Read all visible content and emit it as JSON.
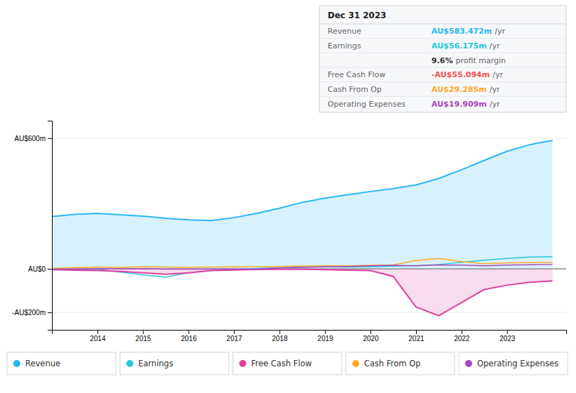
{
  "chart_data": {
    "type": "line",
    "x": [
      2013.0,
      2013.5,
      2014.0,
      2014.5,
      2015.0,
      2015.5,
      2016.0,
      2016.5,
      2017.0,
      2017.5,
      2018.0,
      2018.5,
      2019.0,
      2019.5,
      2020.0,
      2020.5,
      2021.0,
      2021.5,
      2022.0,
      2022.5,
      2023.0,
      2023.5,
      2024.0
    ],
    "series": [
      {
        "name": "Revenue",
        "type": "area",
        "color": "#29b6f6",
        "values": [
          240,
          250,
          255,
          248,
          242,
          232,
          225,
          222,
          235,
          255,
          278,
          305,
          325,
          340,
          355,
          368,
          385,
          415,
          455,
          498,
          540,
          570,
          590
        ]
      },
      {
        "name": "Earnings",
        "type": "line",
        "color": "#26c6da",
        "values": [
          -5,
          -3,
          -2,
          -15,
          -28,
          -38,
          -18,
          -8,
          -3,
          2,
          5,
          8,
          10,
          8,
          10,
          12,
          15,
          20,
          30,
          40,
          48,
          54,
          56
        ]
      },
      {
        "name": "Free Cash Flow",
        "type": "area",
        "color": "#e040a0",
        "values": [
          -3,
          -6,
          -8,
          -12,
          -18,
          -25,
          -18,
          -8,
          -5,
          -3,
          -2,
          -2,
          -4,
          -6,
          -8,
          -35,
          -175,
          -215,
          -155,
          -95,
          -75,
          -62,
          -55
        ]
      },
      {
        "name": "Cash From Op",
        "type": "line",
        "color": "#ffa726",
        "values": [
          3,
          6,
          8,
          7,
          10,
          8,
          7,
          8,
          9,
          10,
          11,
          13,
          14,
          14,
          16,
          18,
          38,
          48,
          33,
          24,
          27,
          29,
          29
        ]
      },
      {
        "name": "Operating Expenses",
        "type": "line",
        "color": "#ab47bc",
        "values": [
          -1,
          -1,
          0,
          0,
          1,
          -1,
          -1,
          -1,
          -1,
          -1,
          4,
          7,
          9,
          11,
          14,
          16,
          14,
          18,
          17,
          14,
          17,
          19,
          20
        ]
      }
    ],
    "xlim": [
      2013.0,
      2024.3
    ],
    "xticks": [
      2014,
      2015,
      2016,
      2017,
      2018,
      2019,
      2020,
      2021,
      2022,
      2023
    ],
    "ylim": [
      -280,
      680
    ],
    "yticks": [
      {
        "value": 600,
        "label": "AU$600m"
      },
      {
        "value": 0,
        "label": "AU$0"
      },
      {
        "value": -200,
        "label": "-AU$200m"
      }
    ],
    "grid": true,
    "legend": "bottom",
    "annotations": [
      {
        "text": "Dec 31 2023"
      },
      {
        "label": "Revenue",
        "text": "AU$583.472m",
        "unit": "/yr",
        "color": "#29b6f6"
      },
      {
        "label": "Earnings",
        "text": "AU$56.175m",
        "unit": "/yr",
        "color": "#26c6da"
      },
      {
        "text": "9.6%",
        "unit": "profit margin"
      },
      {
        "label": "Free Cash Flow",
        "text": "-AU$55.094m",
        "unit": "/yr",
        "color": "#ef5350"
      },
      {
        "label": "Cash From Op",
        "text": "AU$29.285m",
        "unit": "/yr",
        "color": "#ffa726"
      },
      {
        "label": "Operating Expenses",
        "text": "AU$19.909m",
        "unit": "/yr",
        "color": "#ab47bc"
      }
    ]
  }
}
